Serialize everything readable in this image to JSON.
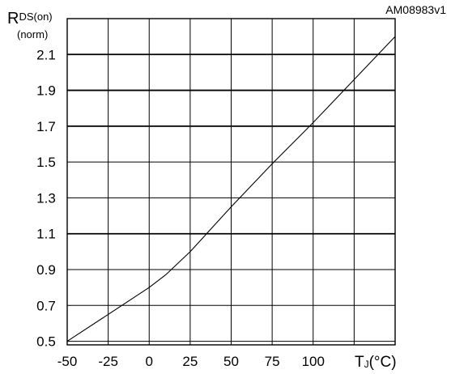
{
  "figure_id": "AM08983v1",
  "chart_data": {
    "type": "line",
    "title": "",
    "ylabel_main": "R",
    "ylabel_subscript": "DS(on)",
    "ylabel_unit": "(norm)",
    "xlabel_main": "T",
    "xlabel_subscript": "J",
    "xlabel_unit": "(°C)",
    "xlim": [
      -50,
      150
    ],
    "ylim": [
      0.48,
      2.3
    ],
    "x_ticks": [
      -50,
      -25,
      0,
      25,
      50,
      75,
      100
    ],
    "x_tick_labels": [
      "-50",
      "-25",
      "0",
      "25",
      "50",
      "75",
      "100"
    ],
    "y_ticks": [
      0.5,
      0.7,
      0.9,
      1.1,
      1.3,
      1.5,
      1.7,
      1.9,
      2.1
    ],
    "y_tick_labels": [
      "0.5",
      "0.7",
      "0.9",
      "1.1",
      "1.3",
      "1.5",
      "1.7",
      "1.9",
      "2.1"
    ],
    "major_y_gridlines": [
      1.1,
      1.7,
      1.9,
      2.1
    ],
    "grid": true,
    "series": [
      {
        "x": [
          -50,
          -25,
          0,
          10,
          25,
          50,
          75,
          100,
          125,
          150
        ],
        "y": [
          0.5,
          0.65,
          0.8,
          0.87,
          1.0,
          1.25,
          1.49,
          1.72,
          1.96,
          2.2
        ]
      }
    ]
  }
}
